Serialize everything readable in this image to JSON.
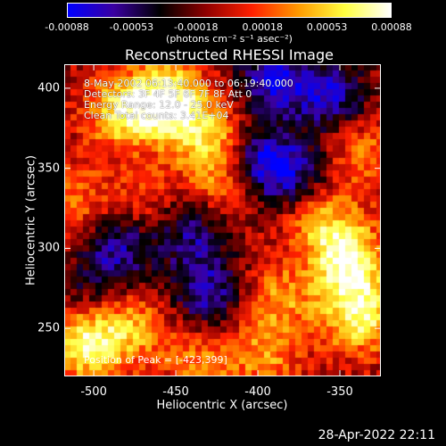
{
  "colorbar": {
    "tick_labels": [
      "-0.00088",
      "-0.00053",
      "-0.00018",
      "0.00018",
      "0.00053",
      "0.00088"
    ],
    "tick_values": [
      -0.00088,
      -0.00053,
      -0.00018,
      0.00018,
      0.00053,
      0.00088
    ],
    "units_label": "(photons cm⁻² s⁻¹ asec⁻²)",
    "colors": [
      "#0000ff",
      "#3a00a0",
      "#000000",
      "#900000",
      "#ff2000",
      "#ff9a00",
      "#ffff40",
      "#ffffff"
    ]
  },
  "chart_data": {
    "type": "heatmap",
    "title": "Reconstructed RHESSI Image",
    "xlabel": "Heliocentric X (arcsec)",
    "ylabel": "Heliocentric Y (arcsec)",
    "xlim": [
      -518,
      -325
    ],
    "ylim": [
      220,
      415
    ],
    "x_ticks": [
      -500,
      -450,
      -400,
      -350
    ],
    "y_ticks": [
      250,
      300,
      350,
      400
    ],
    "vmin": -0.00088,
    "vmax": 0.00088,
    "annotations": [
      "8-May-2002 06:13:40.000 to 06:19:40.000",
      "Detectors: 3F 4F 5F 6F 7F 8F  Att 0",
      "Energy Range: 12.0 - 25.0 keV",
      "Clean     Total counts: 3.41E+04"
    ],
    "peak_label": "Position of Peak = [-423,399]",
    "peak": [
      -423,
      399
    ],
    "sources": [
      {
        "x": -455,
        "y": 393,
        "amp": 0.00088
      },
      {
        "x": -482,
        "y": 385,
        "amp": 0.0007
      },
      {
        "x": -432,
        "y": 370,
        "amp": 0.0006
      },
      {
        "x": -418,
        "y": 342,
        "amp": 0.0005
      },
      {
        "x": -345,
        "y": 292,
        "amp": 0.00085
      },
      {
        "x": -338,
        "y": 258,
        "amp": 0.0008
      },
      {
        "x": -360,
        "y": 318,
        "amp": 0.0005
      },
      {
        "x": -388,
        "y": 268,
        "amp": 0.00045
      },
      {
        "x": -505,
        "y": 240,
        "amp": 0.0008
      },
      {
        "x": -478,
        "y": 252,
        "amp": 0.0005
      },
      {
        "x": -435,
        "y": 228,
        "amp": 0.0004
      },
      {
        "x": -395,
        "y": 232,
        "amp": 0.0004
      },
      {
        "x": -512,
        "y": 330,
        "amp": 0.00035
      },
      {
        "x": -470,
        "y": 330,
        "amp": 0.00025
      },
      {
        "x": -335,
        "y": 360,
        "amp": 0.0004
      },
      {
        "x": -355,
        "y": 395,
        "amp": -0.0006
      },
      {
        "x": -390,
        "y": 405,
        "amp": -0.0007
      },
      {
        "x": -398,
        "y": 352,
        "amp": -0.0008
      },
      {
        "x": -440,
        "y": 310,
        "amp": -0.0005
      },
      {
        "x": -485,
        "y": 300,
        "amp": -0.00055
      },
      {
        "x": -430,
        "y": 272,
        "amp": -0.0006
      },
      {
        "x": -375,
        "y": 345,
        "amp": -0.0004
      },
      {
        "x": -500,
        "y": 272,
        "amp": -0.0003
      }
    ]
  },
  "timestamp": "28-Apr-2022 22:11"
}
